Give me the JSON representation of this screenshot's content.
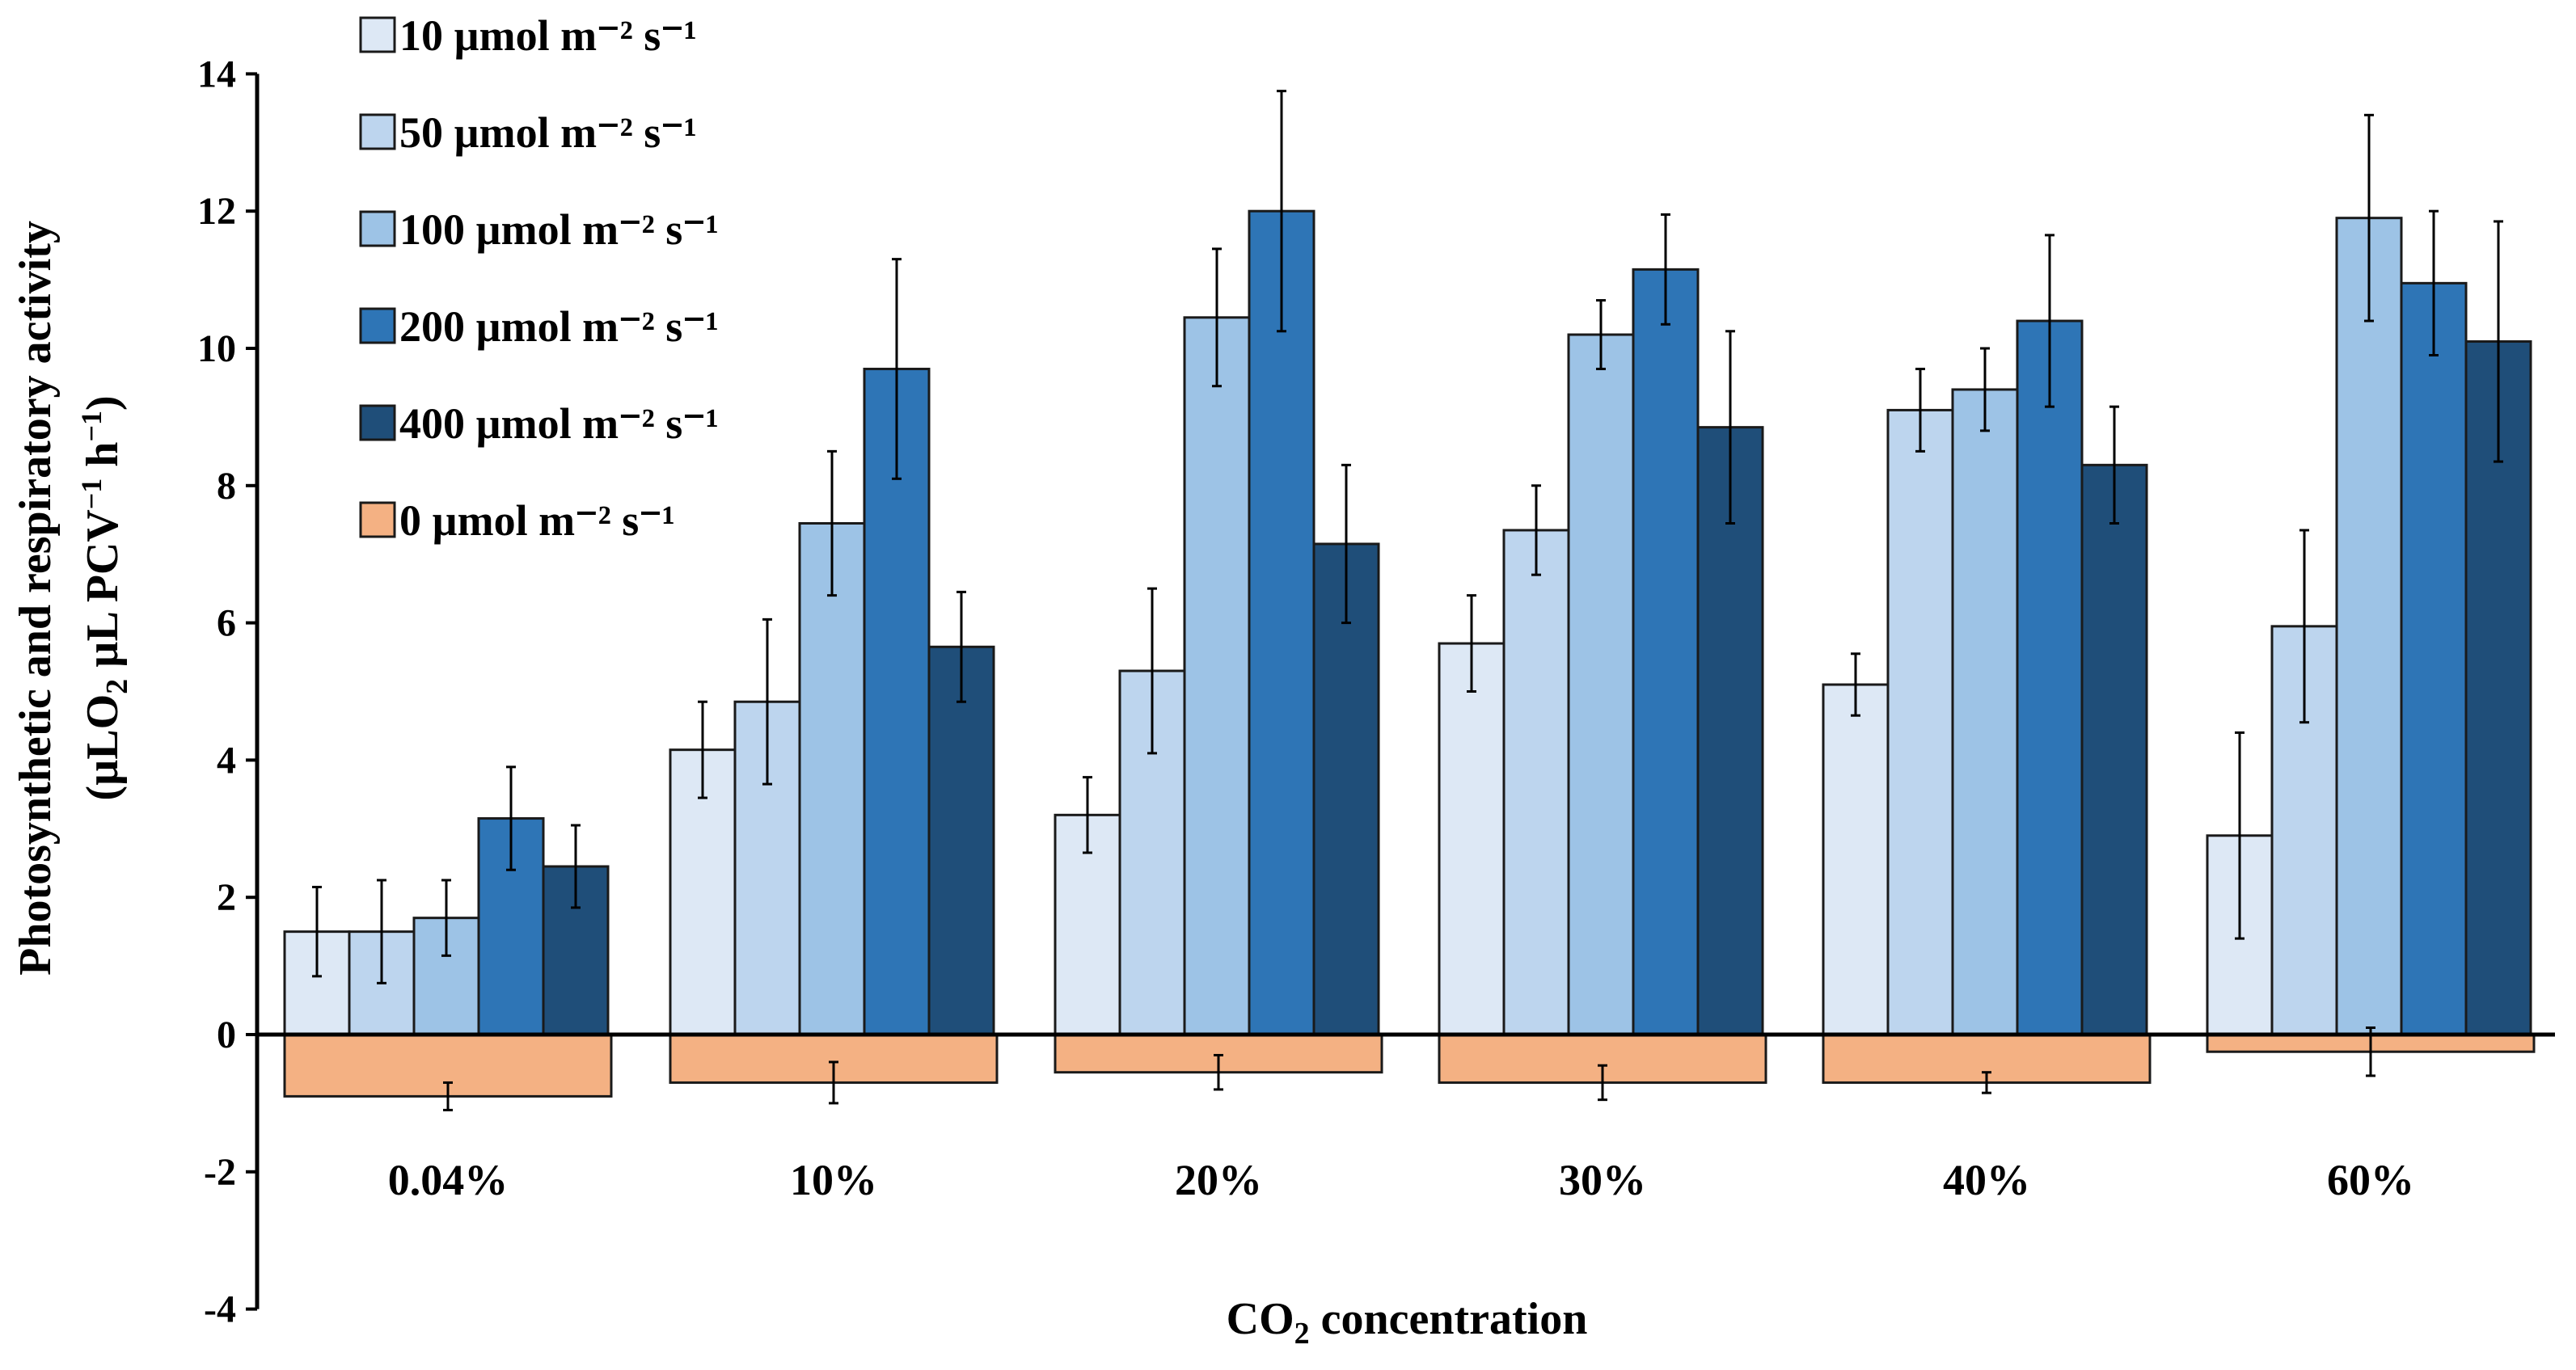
{
  "chart_data": {
    "type": "bar",
    "categories": [
      "0.04%",
      "10%",
      "20%",
      "30%",
      "40%",
      "60%"
    ],
    "series": [
      {
        "name": "10 µmol m⁻² s⁻¹",
        "color": "#dde8f5",
        "values": [
          1.5,
          4.15,
          3.2,
          5.7,
          5.1,
          2.9
        ],
        "errors": [
          0.65,
          0.7,
          0.55,
          0.7,
          0.45,
          1.5
        ]
      },
      {
        "name": "50 µmol m⁻² s⁻¹",
        "color": "#bdd5ee",
        "values": [
          1.5,
          4.85,
          5.3,
          7.35,
          9.1,
          5.95
        ],
        "errors": [
          0.75,
          1.2,
          1.2,
          0.65,
          0.6,
          1.4
        ]
      },
      {
        "name": "100 µmol m⁻² s⁻¹",
        "color": "#9dc3e6",
        "values": [
          1.7,
          7.45,
          10.45,
          10.2,
          9.4,
          11.9
        ],
        "errors": [
          0.55,
          1.05,
          1.0,
          0.5,
          0.6,
          1.5
        ]
      },
      {
        "name": "200 µmol m⁻² s⁻¹",
        "color": "#2e75b6",
        "values": [
          3.15,
          9.7,
          12.0,
          11.15,
          10.4,
          10.95
        ],
        "errors": [
          0.75,
          1.6,
          1.75,
          0.8,
          1.25,
          1.05
        ]
      },
      {
        "name": "400 µmol m⁻² s⁻¹",
        "color": "#1f4e79",
        "values": [
          2.45,
          5.65,
          7.15,
          8.85,
          8.3,
          10.1
        ],
        "errors": [
          0.6,
          0.8,
          1.15,
          1.4,
          0.85,
          1.75
        ]
      },
      {
        "name": "0 µmol m⁻² s⁻¹",
        "color": "#f4b183",
        "values": [
          -0.9,
          -0.7,
          -0.55,
          -0.7,
          -0.7,
          -0.25
        ],
        "errors": [
          0.2,
          0.3,
          0.25,
          0.25,
          0.15,
          0.35
        ]
      }
    ],
    "xlabel_parts": [
      "CO",
      "2",
      " concentration"
    ],
    "ylabel_line1": "Photosynthetic and respiratory activity",
    "ylabel_line2_parts": [
      "(µLO",
      "2",
      " µL PCV",
      "−1",
      " h",
      "−1",
      ")"
    ],
    "ylim": [
      -4,
      14
    ],
    "yticks": [
      -4,
      -2,
      0,
      2,
      4,
      6,
      8,
      10,
      12,
      14
    ],
    "grid": false,
    "legend_position": "top-left"
  }
}
